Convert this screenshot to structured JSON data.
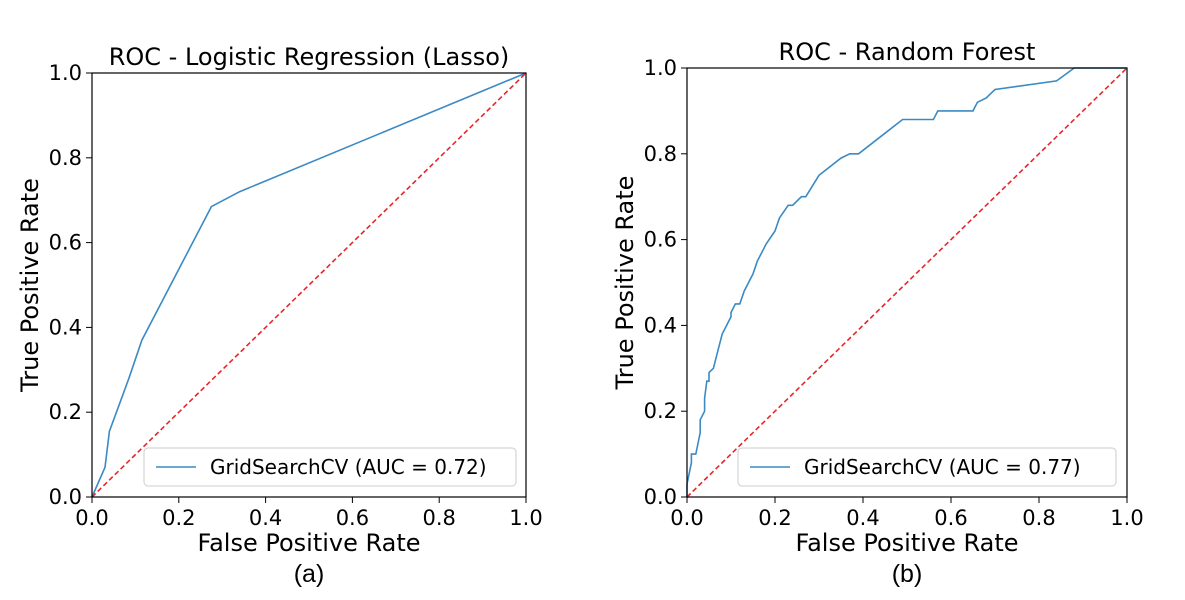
{
  "chart_data": [
    {
      "type": "line",
      "title": "ROC - Logistic Regression (Lasso)",
      "xlabel": "False Positive Rate",
      "ylabel": "True Positive Rate",
      "caption": "(a)",
      "xlim": [
        0,
        1
      ],
      "ylim": [
        0,
        1
      ],
      "xticks": [
        "0.0",
        "0.2",
        "0.4",
        "0.6",
        "0.8",
        "1.0"
      ],
      "yticks": [
        "0.0",
        "0.2",
        "0.4",
        "0.6",
        "0.8",
        "1.0"
      ],
      "grid": false,
      "legend_position": "lower-right",
      "series": [
        {
          "name": "GridSearchCV (AUC = 0.72)",
          "color": "#3b8ac4",
          "x": [
            0.0,
            0.03,
            0.04,
            0.085,
            0.115,
            0.275,
            0.34,
            1.0
          ],
          "y": [
            0.0,
            0.07,
            0.155,
            0.28,
            0.37,
            0.685,
            0.72,
            1.0
          ]
        },
        {
          "name": "",
          "color": "#e8262a",
          "dashed": true,
          "x": [
            0,
            1
          ],
          "y": [
            0,
            1
          ]
        }
      ]
    },
    {
      "type": "line",
      "title": "ROC - Random Forest",
      "xlabel": "False Positive Rate",
      "ylabel": "True Positive Rate",
      "caption": "(b)",
      "xlim": [
        0,
        1
      ],
      "ylim": [
        0,
        1
      ],
      "xticks": [
        "0.0",
        "0.2",
        "0.4",
        "0.6",
        "0.8",
        "1.0"
      ],
      "yticks": [
        "0.0",
        "0.2",
        "0.4",
        "0.6",
        "0.8",
        "1.0"
      ],
      "grid": false,
      "legend_position": "lower-right",
      "series": [
        {
          "name": "GridSearchCV (AUC = 0.77)",
          "color": "#3b8ac4",
          "x": [
            0.0,
            0.0,
            0.01,
            0.01,
            0.02,
            0.03,
            0.03,
            0.04,
            0.04,
            0.045,
            0.05,
            0.05,
            0.06,
            0.06,
            0.07,
            0.08,
            0.08,
            0.1,
            0.1,
            0.11,
            0.12,
            0.13,
            0.13,
            0.14,
            0.15,
            0.16,
            0.16,
            0.18,
            0.2,
            0.21,
            0.21,
            0.23,
            0.24,
            0.24,
            0.26,
            0.27,
            0.3,
            0.35,
            0.37,
            0.39,
            0.49,
            0.56,
            0.57,
            0.65,
            0.66,
            0.68,
            0.69,
            0.7,
            0.84,
            0.88,
            1.0
          ],
          "y": [
            0.0,
            0.03,
            0.08,
            0.1,
            0.1,
            0.15,
            0.18,
            0.2,
            0.23,
            0.27,
            0.27,
            0.29,
            0.3,
            0.3,
            0.34,
            0.38,
            0.38,
            0.42,
            0.43,
            0.45,
            0.45,
            0.48,
            0.48,
            0.5,
            0.52,
            0.55,
            0.55,
            0.59,
            0.62,
            0.65,
            0.65,
            0.68,
            0.68,
            0.68,
            0.7,
            0.7,
            0.75,
            0.79,
            0.8,
            0.8,
            0.88,
            0.88,
            0.9,
            0.9,
            0.92,
            0.93,
            0.94,
            0.95,
            0.97,
            1.0,
            1.0
          ]
        },
        {
          "name": "",
          "color": "#e8262a",
          "dashed": true,
          "x": [
            0,
            1
          ],
          "y": [
            0,
            1
          ]
        }
      ]
    }
  ]
}
